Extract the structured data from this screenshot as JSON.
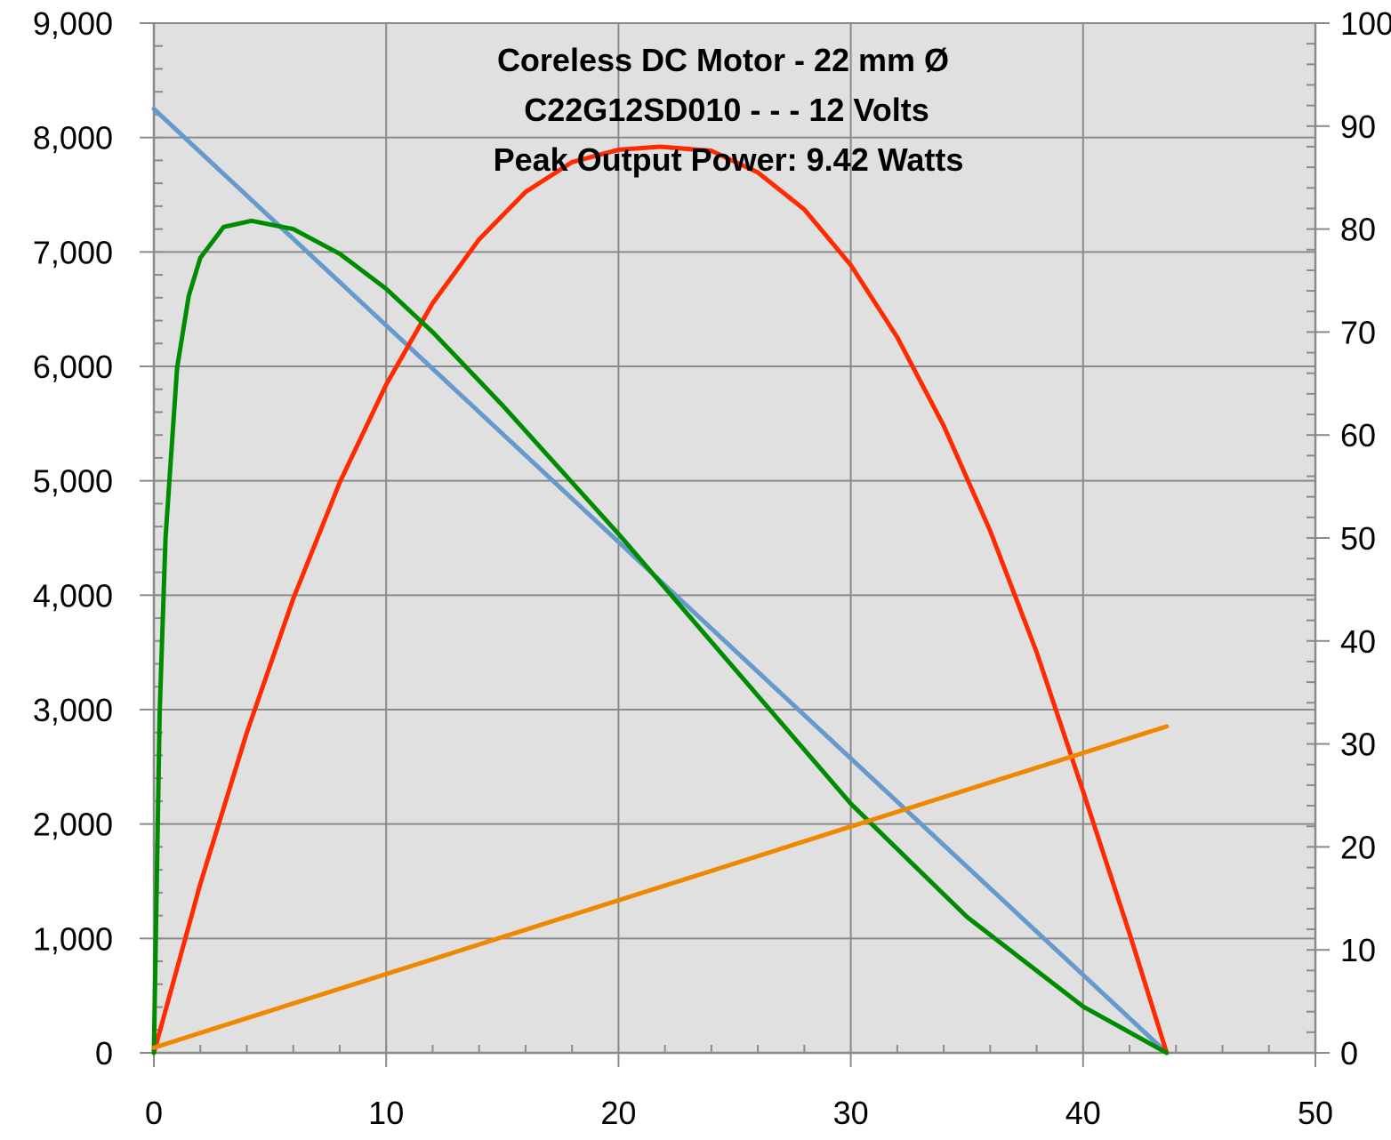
{
  "chart_data": {
    "type": "line",
    "title_lines": [
      "Coreless DC Motor - 22 mm Ø",
      "C22G12SD010 - - - 12 Volts",
      "Peak Output Power: 9.42 Watts"
    ],
    "xlim": [
      0,
      50
    ],
    "ylim_left": [
      0,
      9000
    ],
    "ylim_right": [
      0,
      100
    ],
    "x_ticks": [
      0,
      10,
      20,
      30,
      40,
      50
    ],
    "x_tick_labels": [
      "0",
      "10",
      "20",
      "30",
      "40",
      "50"
    ],
    "y_left_ticks": [
      0,
      1000,
      2000,
      3000,
      4000,
      5000,
      6000,
      7000,
      8000,
      9000
    ],
    "y_left_tick_labels": [
      "0",
      "1,000",
      "2,000",
      "3,000",
      "4,000",
      "5,000",
      "6,000",
      "7,000",
      "8,000",
      "9,000"
    ],
    "y_right_ticks": [
      0,
      10,
      20,
      30,
      40,
      50,
      60,
      70,
      80,
      90,
      100
    ],
    "y_right_tick_labels": [
      "0",
      "10",
      "20",
      "30",
      "40",
      "50",
      "60",
      "70",
      "80",
      "90",
      "100"
    ],
    "grid": true,
    "series": [
      {
        "color": "#6699cc",
        "axis": "left",
        "x": [
          0,
          43.6
        ],
        "y": [
          8250,
          0
        ]
      },
      {
        "color": "#ff2a00",
        "axis": "right",
        "x": [
          0,
          2,
          4,
          6,
          8,
          10,
          12,
          14,
          16,
          18,
          20,
          21.8,
          24,
          26,
          28,
          30,
          32,
          34,
          36,
          38,
          40,
          42,
          43.6
        ],
        "y": [
          0,
          16.4,
          31.1,
          44.1,
          55.4,
          64.9,
          72.8,
          79.0,
          83.6,
          86.5,
          87.7,
          88.0,
          87.6,
          85.5,
          81.9,
          76.5,
          69.5,
          60.9,
          50.7,
          38.9,
          25.4,
          11.6,
          0
        ]
      },
      {
        "color": "#008c00",
        "axis": "right",
        "x": [
          0,
          0.25,
          0.5,
          1,
          1.5,
          2,
          3,
          4.2,
          6,
          8,
          10,
          12,
          15,
          20,
          25,
          30,
          35,
          40,
          43.6
        ],
        "y": [
          0,
          33,
          50,
          66.5,
          73.5,
          77.2,
          80.2,
          80.8,
          80.0,
          77.6,
          74.2,
          70.0,
          62.9,
          50.4,
          37.3,
          24.2,
          13.2,
          4.5,
          0
        ]
      },
      {
        "color": "#ee8800",
        "axis": "right",
        "x": [
          0,
          43.6
        ],
        "y": [
          0.5,
          31.7
        ]
      }
    ]
  }
}
